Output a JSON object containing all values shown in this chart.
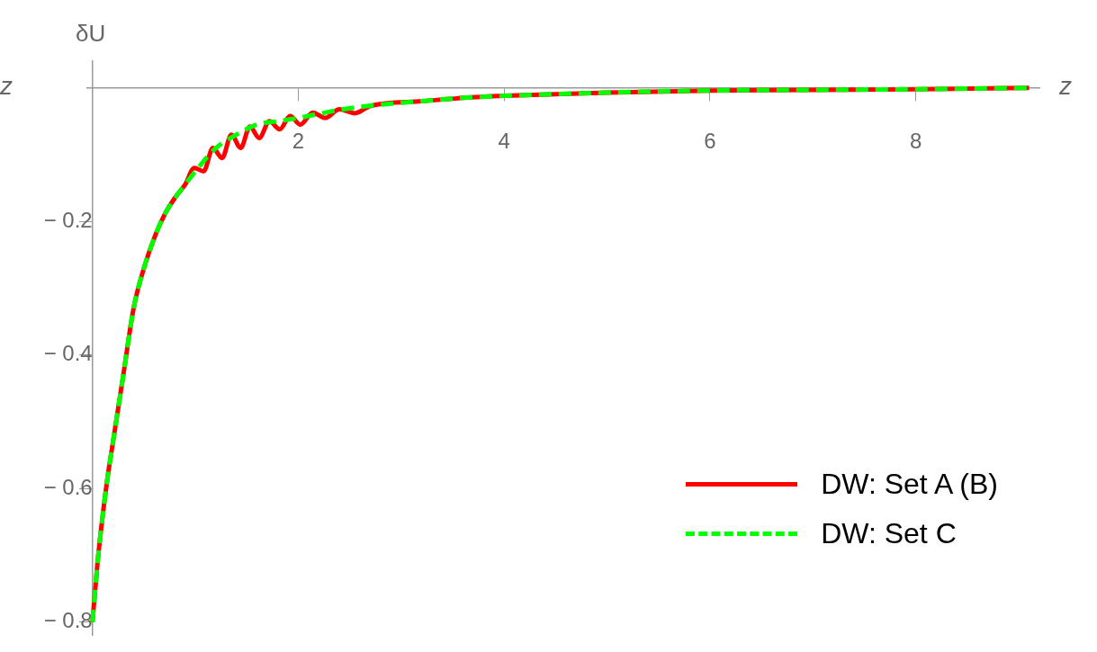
{
  "chart_data": {
    "type": "line",
    "xlabel": "z",
    "ylabel": "δU",
    "annotations": [
      "z"
    ],
    "xlim": [
      -0.05,
      9.2
    ],
    "ylim": [
      -0.82,
      0.04
    ],
    "xticks": [
      2,
      4,
      6,
      8
    ],
    "yticks": [
      -0.8,
      -0.6,
      -0.4,
      -0.2
    ],
    "grid": false,
    "legend": "bottom right",
    "marker": "none",
    "series": [
      {
        "name": "DW: Set A (B)",
        "color": "#ff0000",
        "line_style": "solid",
        "x": [
          0,
          0.05,
          0.1,
          0.15,
          0.2,
          0.25,
          0.3,
          0.4,
          0.5,
          0.6,
          0.7,
          0.8,
          0.9,
          0.99,
          1.08,
          1.17,
          1.26,
          1.35,
          1.44,
          1.53,
          1.62,
          1.72,
          1.82,
          1.92,
          2.02,
          2.14,
          2.26,
          2.4,
          2.55,
          2.7,
          3.2,
          3.6,
          4,
          5,
          6,
          7,
          8,
          9.1
        ],
        "values": [
          -0.8,
          -0.71,
          -0.64,
          -0.58,
          -0.53,
          -0.48,
          -0.43,
          -0.33,
          -0.27,
          -0.225,
          -0.19,
          -0.165,
          -0.145,
          -0.12,
          -0.125,
          -0.09,
          -0.105,
          -0.07,
          -0.09,
          -0.058,
          -0.075,
          -0.05,
          -0.062,
          -0.042,
          -0.055,
          -0.037,
          -0.045,
          -0.032,
          -0.038,
          -0.027,
          -0.02,
          -0.015,
          -0.012,
          -0.007,
          -0.004,
          -0.003,
          -0.002,
          0
        ]
      },
      {
        "name": "DW: Set C",
        "color": "#00ff00",
        "line_style": "dashed",
        "x": [
          0,
          0.05,
          0.1,
          0.15,
          0.2,
          0.25,
          0.3,
          0.4,
          0.5,
          0.6,
          0.7,
          0.8,
          0.9,
          1.0,
          1.2,
          1.4,
          1.6,
          1.8,
          2.0,
          2.4,
          2.8,
          3.2,
          3.6,
          4,
          5,
          6,
          7,
          8,
          9.1
        ],
        "values": [
          -0.8,
          -0.71,
          -0.64,
          -0.58,
          -0.53,
          -0.48,
          -0.43,
          -0.33,
          -0.27,
          -0.225,
          -0.19,
          -0.165,
          -0.145,
          -0.125,
          -0.09,
          -0.07,
          -0.055,
          -0.05,
          -0.045,
          -0.033,
          -0.025,
          -0.02,
          -0.015,
          -0.012,
          -0.007,
          -0.004,
          -0.003,
          -0.002,
          0
        ]
      }
    ]
  }
}
